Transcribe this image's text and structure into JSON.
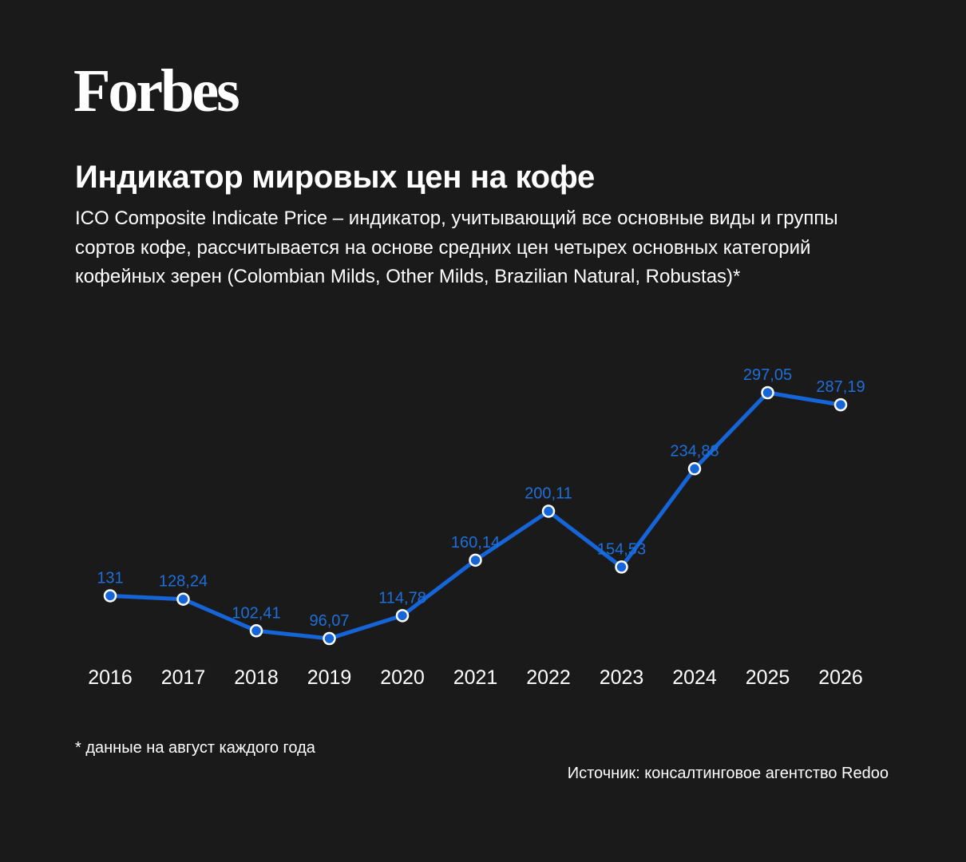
{
  "brand": {
    "logo_text": "Forbes"
  },
  "header": {
    "title": "Индикатор мировых цен на кофе",
    "subtitle": "ICO Composite Indicate Price – индикатор, учитывающий все основные виды и группы сортов кофе, рассчитывается на основе средних цен четырех основных категорий кофейных зерен (Colombian Milds, Other Milds, Brazilian Natural, Robustas)*"
  },
  "chart_data": {
    "type": "line",
    "x": [
      "2016",
      "2017",
      "2018",
      "2019",
      "2020",
      "2021",
      "2022",
      "2023",
      "2024",
      "2025",
      "2026"
    ],
    "values": [
      131,
      128.24,
      102.41,
      96.07,
      114.78,
      160.14,
      200.11,
      154.53,
      234.88,
      297.05,
      287.19
    ],
    "value_labels": [
      "131",
      "128,24",
      "102,41",
      "96,07",
      "114,78",
      "160,14",
      "200,11",
      "154,53",
      "234,88",
      "297,05",
      "287,19"
    ],
    "grid": false,
    "y_axis_shown": false
  },
  "footer": {
    "footnote": "* данные на август каждого года",
    "source": "Источник: консалтинговое агентство Redoo"
  },
  "colors": {
    "background": "#1b1a1a",
    "line": "#1565d8",
    "label": "#1e6fd9",
    "text": "#ffffff"
  }
}
